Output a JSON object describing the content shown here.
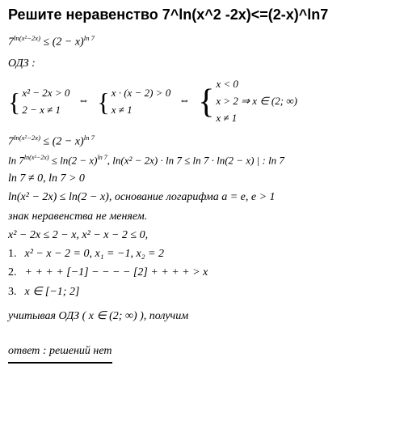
{
  "title": "Решите неравенство 7^ln(x^2 -2x)<=(2-x)^ln7",
  "expr_main_lhs": "7",
  "expr_main_exp1": "ln(x²−2x)",
  "expr_main_rhs_base": "(2 − x)",
  "expr_main_exp2": "ln 7",
  "odz_label": "ОДЗ :",
  "sys1_a": "x² − 2x > 0",
  "sys1_b": "2 − x ≠ 1",
  "sys2_a": "x · (x − 2) > 0",
  "sys2_b": "x ≠ 1",
  "sys3_a": "x < 0",
  "sys3_b": "x > 2  ⇒  x ∈ (2; ∞)",
  "sys3_c": "x ≠ 1",
  "ln_line_a": "ln 7",
  "ln_line_a_sup": "ln(x²−2x)",
  "ln_line_a_mid": " ≤ ln(2 − x)",
  "ln_line_a_sup2": "ln 7",
  "ln_line_a_tail": ",    ln(x² − 2x) · ln 7 ≤ ln 7 · ln(2 − x) | : ln 7",
  "ln7_line": "ln 7 ≠ 0,    ln 7 > 0",
  "base_line": "ln(x² − 2x) ≤ ln(2 − x),    основание логарифма a = e, e > 1",
  "sign_line": "знак неравенства не меняем.",
  "poly_line": "x² − 2x ≤ 2 − x,    x² − x − 2 ≤ 0,",
  "item1": "x² − x − 2 = 0,  x₁ = −1,  x₂ = 2",
  "item2": "+ + + + [−1] − − − − [2] + + + + > x",
  "item3": "x ∈ [−1; 2]",
  "final1": "учитывая ОДЗ ( x ∈ (2; ∞) ),  получим",
  "final2": "ответ : решений нет"
}
